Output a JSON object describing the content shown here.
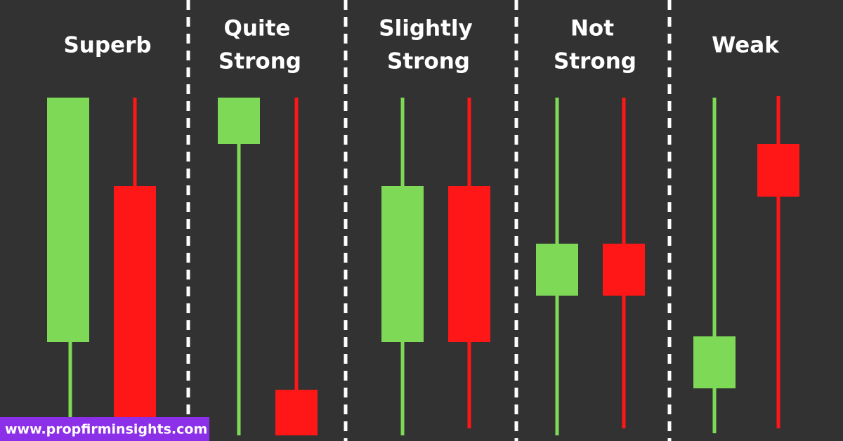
{
  "sections": [
    {
      "title": [
        "Superb"
      ]
    },
    {
      "title": [
        "Quite",
        "Strong"
      ]
    },
    {
      "title": [
        "Slightly",
        "Strong"
      ]
    },
    {
      "title": [
        "Not",
        "Strong"
      ]
    },
    {
      "title": [
        "Weak"
      ]
    }
  ],
  "footer": {
    "url": "www.propfirminsights.com"
  }
}
